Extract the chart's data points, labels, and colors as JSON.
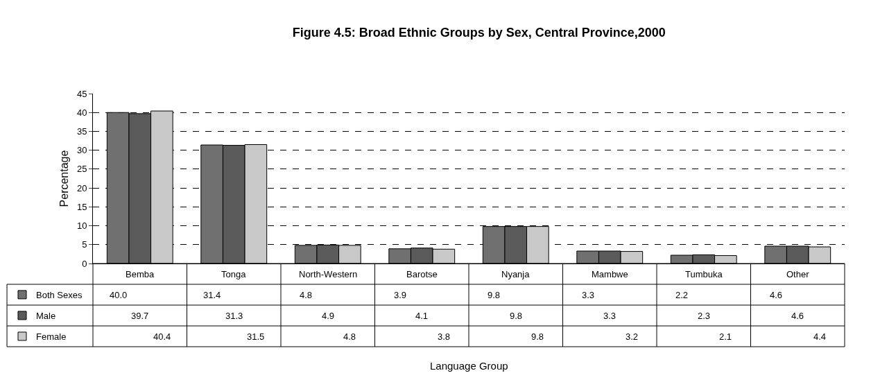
{
  "chart_data": {
    "type": "bar",
    "title": "Figure 4.5: Broad Ethnic Groups by Sex, Central Province,2000",
    "annotations": [
      "Language Group"
    ],
    "ylabel": "Percentage",
    "categories": [
      "Bemba",
      "Tonga",
      "North-Western",
      "Barotse",
      "Nyanja",
      "Mambwe",
      "Tumbuka",
      "Other"
    ],
    "series": [
      {
        "name": "Both Sexes",
        "color": "#707070",
        "values": [
          40.0,
          31.4,
          4.8,
          3.9,
          9.8,
          3.3,
          2.2,
          4.6
        ],
        "value_labels": [
          "40.0",
          "31.4",
          "4.8",
          "3.9",
          "9.8",
          "3.3",
          "2.2",
          "4.6"
        ]
      },
      {
        "name": "Male",
        "color": "#5a5a5a",
        "values": [
          39.7,
          31.3,
          4.9,
          4.1,
          9.8,
          3.3,
          2.3,
          4.6
        ],
        "value_labels": [
          "39.7",
          "31.3",
          "4.9",
          "4.1",
          "9.8",
          "3.3",
          "2.3",
          "4.6"
        ]
      },
      {
        "name": "Female",
        "color": "#c8c8c8",
        "values": [
          40.4,
          31.5,
          4.8,
          3.8,
          9.8,
          3.2,
          2.1,
          4.4
        ],
        "value_labels": [
          "40.4",
          "31.5",
          "4.8",
          "3.8",
          "9.8",
          "3.2",
          "2.1",
          "4.4"
        ]
      }
    ],
    "ylim": [
      0,
      45
    ],
    "yticks": [
      0,
      5,
      10,
      15,
      20,
      25,
      30,
      35,
      40,
      45
    ],
    "grid": "y",
    "legend": "bottom left"
  }
}
